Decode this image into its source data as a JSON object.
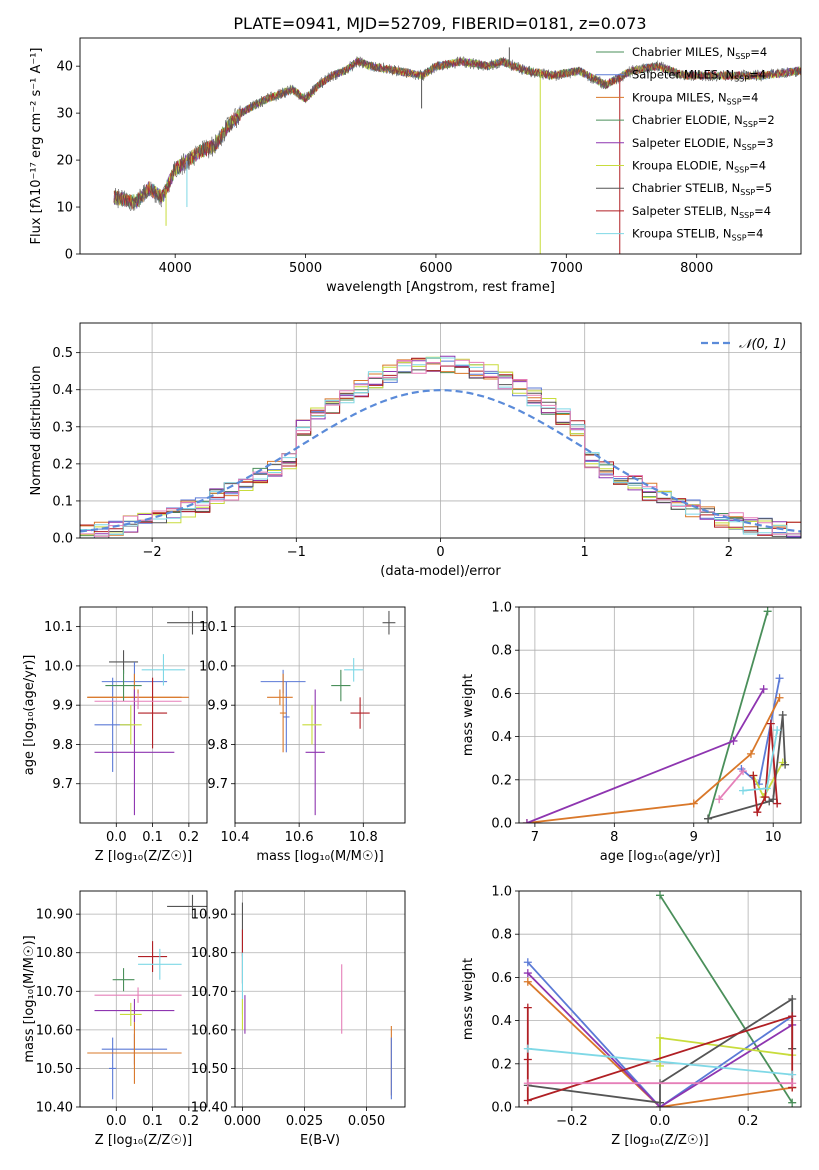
{
  "title": "PLATE=0941, MJD=52709, FIBERID=0181, z=0.073",
  "chart_data": [
    {
      "id": "spectrum",
      "type": "line",
      "xlabel": "wavelength [Angstrom, rest frame]",
      "ylabel": "Flux [fλ10⁻¹⁷ erg cm⁻² s⁻¹ A⁻¹]",
      "xlim": [
        3270,
        8800
      ],
      "ylim": [
        0,
        46
      ],
      "xticks": [
        4000,
        5000,
        6000,
        7000,
        8000
      ],
      "yticks": [
        0,
        10,
        20,
        30,
        40
      ],
      "grid": false,
      "legend": "top-right",
      "continuum": {
        "x": [
          3550,
          3700,
          3800,
          3900,
          3950,
          4000,
          4100,
          4200,
          4300,
          4400,
          4500,
          4700,
          4900,
          5000,
          5100,
          5200,
          5300,
          5400,
          5500,
          5700,
          5900,
          6000,
          6200,
          6400,
          6500,
          6700,
          6900,
          7100,
          7300,
          7500,
          7700,
          7900,
          8100,
          8300,
          8500,
          8800
        ],
        "y": [
          12,
          11,
          14,
          12,
          15,
          18,
          20,
          22,
          23,
          27,
          30,
          33,
          35,
          33,
          36,
          38,
          39,
          41,
          40,
          39,
          38,
          40,
          41,
          40,
          41,
          39,
          38,
          39,
          36,
          39,
          40,
          38,
          38,
          38,
          38,
          39
        ]
      },
      "features": [
        {
          "x": 3930,
          "y": 6,
          "series": "Kroupa ELODIE"
        },
        {
          "x": 4090,
          "y": 10,
          "series": "Kroupa STELIB"
        },
        {
          "x": 5890,
          "y": 31,
          "series": "Chabrier STELIB"
        },
        {
          "x": 6563,
          "y": 44,
          "series": "Chabrier STELIB"
        },
        {
          "x": 6800,
          "y": 0,
          "series": "Kroupa ELODIE"
        },
        {
          "x": 7410,
          "y": 0,
          "series": "Salpeter STELIB"
        }
      ],
      "series": [
        {
          "name": "Chabrier MILES, N_SSP=4",
          "color": "#4a8f5a"
        },
        {
          "name": "Salpeter MILES, N_SSP=4",
          "color": "#5b7ad6"
        },
        {
          "name": "Kroupa MILES, N_SSP=4",
          "color": "#d9782a"
        },
        {
          "name": "Chabrier ELODIE, N_SSP=2",
          "color": "#4a8f5a"
        },
        {
          "name": "Salpeter ELODIE, N_SSP=3",
          "color": "#8e35b0"
        },
        {
          "name": "Kroupa ELODIE, N_SSP=4",
          "color": "#c8dc3c"
        },
        {
          "name": "Chabrier STELIB, N_SSP=5",
          "color": "#555555"
        },
        {
          "name": "Salpeter STELIB, N_SSP=4",
          "color": "#b01f24"
        },
        {
          "name": "Kroupa STELIB, N_SSP=4",
          "color": "#7fd8e6"
        }
      ]
    },
    {
      "id": "residuals",
      "type": "line",
      "xlabel": "(data-model)/error",
      "ylabel": "Normed distribution",
      "xlim": [
        -2.5,
        2.5
      ],
      "ylim": [
        0,
        0.58
      ],
      "xticks": [
        -2,
        -1,
        0,
        1,
        2
      ],
      "yticks": [
        0.0,
        0.1,
        0.2,
        0.3,
        0.4,
        0.5
      ],
      "grid": true,
      "legend": "top-right",
      "legend_label": "𝒩(0, 1)",
      "bin_width": 0.1
    },
    {
      "id": "age-vs-Z",
      "type": "scatter",
      "xlabel": "Z [log₁₀(Z/Z☉)]",
      "ylabel": "age  [log₁₀(age/yr)]",
      "xlim": [
        -0.1,
        0.25
      ],
      "ylim": [
        9.6,
        10.15
      ],
      "xticks": [
        0.0,
        0.1,
        0.2
      ],
      "yticks": [
        9.7,
        9.8,
        9.9,
        10.0,
        10.1
      ],
      "grid": true,
      "points": [
        {
          "x": 0.02,
          "y": 10.01,
          "xerr": 0.04,
          "yerr": 0.03,
          "color": "#555555"
        },
        {
          "x": 0.21,
          "y": 10.11,
          "xerr": 0.07,
          "yerr": 0.03,
          "color": "#555555"
        },
        {
          "x": 0.05,
          "y": 9.96,
          "xerr": 0.09,
          "yerr": 0.05,
          "color": "#5b7ad6"
        },
        {
          "x": -0.01,
          "y": 9.85,
          "xerr": 0.05,
          "yerr": 0.12,
          "color": "#5b7ad6"
        },
        {
          "x": 0.05,
          "y": 9.92,
          "xerr": 0.13,
          "yerr": 0.06,
          "color": "#d9782a"
        },
        {
          "x": 0.06,
          "y": 9.92,
          "xerr": 0.14,
          "yerr": 0.02,
          "color": "#d9782a"
        },
        {
          "x": 0.05,
          "y": 9.78,
          "xerr": 0.11,
          "yerr": 0.16,
          "color": "#8e35b0"
        },
        {
          "x": 0.02,
          "y": 9.95,
          "xerr": 0.05,
          "yerr": 0.04,
          "color": "#4a8f5a"
        },
        {
          "x": 0.04,
          "y": 9.85,
          "xerr": 0.03,
          "yerr": 0.05,
          "color": "#c8dc3c"
        },
        {
          "x": 0.1,
          "y": 9.88,
          "xerr": 0.04,
          "yerr": 0.09,
          "color": "#b01f24"
        },
        {
          "x": 0.13,
          "y": 9.99,
          "xerr": 0.06,
          "yerr": 0.04,
          "color": "#7fd8e6"
        },
        {
          "x": 0.06,
          "y": 9.91,
          "xerr": 0.12,
          "yerr": 0.02,
          "color": "#e57fb8"
        }
      ]
    },
    {
      "id": "age-vs-mass",
      "type": "scatter",
      "xlabel": "mass [log₁₀(M/M☉)]",
      "ylabel": "",
      "xlim": [
        10.4,
        10.93
      ],
      "ylim": [
        9.6,
        10.15
      ],
      "xticks": [
        10.4,
        10.6,
        10.8
      ],
      "yticks": [
        9.7,
        9.8,
        9.9,
        10.0,
        10.1
      ],
      "grid": true,
      "points": [
        {
          "x": 10.88,
          "y": 10.11,
          "xerr": 0.02,
          "yerr": 0.03,
          "color": "#555555"
        },
        {
          "x": 10.55,
          "y": 9.96,
          "xerr": 0.07,
          "yerr": 0.03,
          "color": "#5b7ad6"
        },
        {
          "x": 10.56,
          "y": 9.87,
          "xerr": 0.01,
          "yerr": 0.09,
          "color": "#5b7ad6"
        },
        {
          "x": 10.54,
          "y": 9.92,
          "xerr": 0.04,
          "yerr": 0.02,
          "color": "#d9782a"
        },
        {
          "x": 10.55,
          "y": 9.88,
          "xerr": 0.01,
          "yerr": 0.1,
          "color": "#d9782a"
        },
        {
          "x": 10.65,
          "y": 9.78,
          "xerr": 0.03,
          "yerr": 0.16,
          "color": "#8e35b0"
        },
        {
          "x": 10.73,
          "y": 9.95,
          "xerr": 0.03,
          "yerr": 0.04,
          "color": "#4a8f5a"
        },
        {
          "x": 10.64,
          "y": 9.85,
          "xerr": 0.03,
          "yerr": 0.05,
          "color": "#c8dc3c"
        },
        {
          "x": 10.79,
          "y": 9.88,
          "xerr": 0.03,
          "yerr": 0.04,
          "color": "#b01f24"
        },
        {
          "x": 10.77,
          "y": 9.99,
          "xerr": 0.03,
          "yerr": 0.03,
          "color": "#7fd8e6"
        }
      ]
    },
    {
      "id": "weight-vs-age",
      "type": "line",
      "xlabel": "age  [log₁₀(age/yr)]",
      "ylabel": "mass weight",
      "xlim": [
        6.8,
        10.35
      ],
      "ylim": [
        0,
        1.0
      ],
      "xticks": [
        7,
        8,
        9,
        10
      ],
      "yticks": [
        0.0,
        0.2,
        0.4,
        0.6,
        0.8,
        1.0
      ],
      "grid": true,
      "series": [
        {
          "color": "#4a8f5a",
          "x": [
            9.18,
            9.93
          ],
          "y": [
            0.02,
            0.98
          ]
        },
        {
          "color": "#5b7ad6",
          "x": [
            9.6,
            9.82,
            10.08
          ],
          "y": [
            0.25,
            0.18,
            0.67
          ]
        },
        {
          "color": "#d9782a",
          "x": [
            6.9,
            9.0,
            9.72,
            10.08
          ],
          "y": [
            0.0,
            0.09,
            0.32,
            0.58
          ]
        },
        {
          "color": "#8e35b0",
          "x": [
            6.9,
            9.5,
            9.88
          ],
          "y": [
            0.0,
            0.38,
            0.62
          ]
        },
        {
          "color": "#c8dc3c",
          "x": [
            9.75,
            9.88,
            10.12
          ],
          "y": [
            0.22,
            0.12,
            0.28
          ]
        },
        {
          "color": "#555555",
          "x": [
            9.18,
            9.95,
            10.0,
            10.12,
            10.15
          ],
          "y": [
            0.02,
            0.1,
            0.11,
            0.5,
            0.27
          ]
        },
        {
          "color": "#b01f24",
          "x": [
            9.75,
            9.8,
            9.9,
            9.97,
            10.05
          ],
          "y": [
            0.22,
            0.05,
            0.12,
            0.46,
            0.09
          ]
        },
        {
          "color": "#7fd8e6",
          "x": [
            9.62,
            9.92,
            10.05
          ],
          "y": [
            0.15,
            0.16,
            0.43
          ]
        },
        {
          "color": "#e57fb8",
          "x": [
            9.32,
            9.62
          ],
          "y": [
            0.11,
            0.24
          ]
        }
      ]
    },
    {
      "id": "mass-vs-Z",
      "type": "scatter",
      "xlabel": "Z [log₁₀(Z/Z☉)]",
      "ylabel": "mass [log₁₀(M/M☉)]",
      "xlim": [
        -0.1,
        0.25
      ],
      "ylim": [
        10.4,
        10.96
      ],
      "xticks": [
        0.0,
        0.1,
        0.2
      ],
      "yticks": [
        10.4,
        10.5,
        10.6,
        10.7,
        10.8,
        10.9
      ],
      "grid": true,
      "points": [
        {
          "x": 0.21,
          "y": 10.92,
          "xerr": 0.07,
          "yerr": 0.03,
          "color": "#555555"
        },
        {
          "x": 0.1,
          "y": 10.79,
          "xerr": 0.04,
          "yerr": 0.04,
          "color": "#b01f24"
        },
        {
          "x": 0.02,
          "y": 10.73,
          "xerr": 0.03,
          "yerr": 0.03,
          "color": "#4a8f5a"
        },
        {
          "x": 0.12,
          "y": 10.77,
          "xerr": 0.06,
          "yerr": 0.04,
          "color": "#7fd8e6"
        },
        {
          "x": 0.06,
          "y": 10.69,
          "xerr": 0.12,
          "yerr": 0.02,
          "color": "#e57fb8"
        },
        {
          "x": 0.05,
          "y": 10.65,
          "xerr": 0.11,
          "yerr": 0.03,
          "color": "#8e35b0"
        },
        {
          "x": 0.04,
          "y": 10.64,
          "xerr": 0.03,
          "yerr": 0.03,
          "color": "#c8dc3c"
        },
        {
          "x": 0.05,
          "y": 10.55,
          "xerr": 0.09,
          "yerr": 0.04,
          "color": "#5b7ad6"
        },
        {
          "x": -0.01,
          "y": 10.5,
          "xerr": 0.01,
          "yerr": 0.08,
          "color": "#5b7ad6"
        },
        {
          "x": 0.05,
          "y": 10.54,
          "xerr": 0.13,
          "yerr": 0.08,
          "color": "#d9782a"
        }
      ]
    },
    {
      "id": "mass-vs-EBV",
      "type": "scatter",
      "xlabel": "E(B-V)",
      "ylabel": "",
      "xlim": [
        -0.003,
        0.0655
      ],
      "ylim": [
        10.4,
        10.96
      ],
      "xticks": [
        0.0,
        0.025,
        0.05
      ],
      "yticks": [
        10.4,
        10.5,
        10.6,
        10.7,
        10.8,
        10.9
      ],
      "grid": true,
      "points": [
        {
          "x": 0.0,
          "y": 10.86,
          "yerr": 0.07,
          "color": "#555555"
        },
        {
          "x": 0.0,
          "y": 10.79,
          "yerr": 0.07,
          "color": "#b01f24"
        },
        {
          "x": 0.0,
          "y": 10.72,
          "yerr": 0.08,
          "color": "#7fd8e6"
        },
        {
          "x": 0.0,
          "y": 10.64,
          "yerr": 0.04,
          "color": "#c8dc3c"
        },
        {
          "x": 0.001,
          "y": 10.64,
          "yerr": 0.05,
          "color": "#8e35b0"
        },
        {
          "x": 0.04,
          "y": 10.68,
          "yerr": 0.09,
          "color": "#e57fb8"
        },
        {
          "x": 0.06,
          "y": 10.52,
          "yerr": 0.09,
          "color": "#d9782a"
        },
        {
          "x": 0.06,
          "y": 10.5,
          "yerr": 0.08,
          "color": "#5b7ad6"
        }
      ]
    },
    {
      "id": "weight-vs-Z",
      "type": "line",
      "xlabel": "Z [log₁₀(Z/Z☉)]",
      "ylabel": "mass weight",
      "xlim": [
        -0.32,
        0.32
      ],
      "ylim": [
        0,
        1.0
      ],
      "xticks": [
        -0.2,
        0.0,
        0.2
      ],
      "yticks": [
        0.0,
        0.2,
        0.4,
        0.6,
        0.8,
        1.0
      ],
      "grid": true,
      "series": [
        {
          "color": "#4a8f5a",
          "x": [
            0.0,
            0.3
          ],
          "y": [
            0.98,
            0.02
          ]
        },
        {
          "color": "#5b7ad6",
          "x": [
            -0.3,
            0.0,
            0.3
          ],
          "y": [
            0.67,
            0.0,
            0.42
          ]
        },
        {
          "color": "#d9782a",
          "x": [
            -0.3,
            0.0,
            0.3
          ],
          "y": [
            0.58,
            0.0,
            0.09
          ]
        },
        {
          "color": "#8e35b0",
          "x": [
            -0.3,
            0.0,
            0.3
          ],
          "y": [
            0.62,
            0.0,
            0.38
          ]
        },
        {
          "color": "#c8dc3c",
          "x": [
            0.0,
            0.0,
            0.3
          ],
          "y": [
            0.19,
            0.32,
            0.24
          ]
        },
        {
          "color": "#555555",
          "x": [
            -0.3,
            0.0,
            0.0,
            0.3,
            0.3
          ],
          "y": [
            0.1,
            0.02,
            0.11,
            0.5,
            0.27
          ]
        },
        {
          "color": "#b01f24",
          "x": [
            -0.3,
            -0.3,
            -0.3,
            0.3,
            0.3
          ],
          "y": [
            0.46,
            0.22,
            0.03,
            0.42,
            0.09
          ]
        },
        {
          "color": "#7fd8e6",
          "x": [
            -0.3,
            0.3
          ],
          "y": [
            0.27,
            0.15
          ]
        },
        {
          "color": "#e57fb8",
          "x": [
            -0.3,
            0.3
          ],
          "y": [
            0.11,
            0.11
          ]
        }
      ]
    }
  ]
}
